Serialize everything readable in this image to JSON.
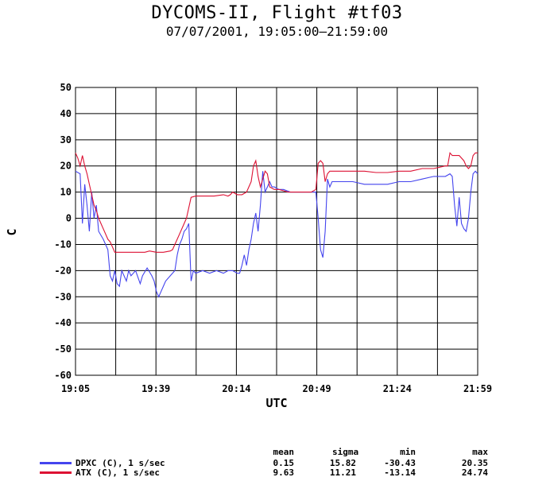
{
  "title": "DYCOMS-II, Flight #tf03",
  "subtitle": "07/07/2001, 19:05:00–21:59:00",
  "chart_data": {
    "type": "line",
    "xlabel": "UTC",
    "ylabel": "C",
    "x_ticks": [
      "19:05",
      "19:39",
      "20:14",
      "20:49",
      "21:24",
      "21:59"
    ],
    "x_range_minutes": [
      0,
      174
    ],
    "ylim": [
      -60,
      50
    ],
    "y_ticks": [
      -60,
      -50,
      -40,
      -30,
      -20,
      -10,
      0,
      10,
      20,
      30,
      40,
      50
    ],
    "grid": true,
    "series": [
      {
        "name": "DPXC (C), 1 s/sec",
        "color": "#4444ee",
        "points": [
          [
            0,
            18
          ],
          [
            2,
            17
          ],
          [
            3,
            -2
          ],
          [
            4,
            13
          ],
          [
            5,
            5
          ],
          [
            6,
            -5
          ],
          [
            7,
            10
          ],
          [
            8,
            0
          ],
          [
            9,
            5
          ],
          [
            10,
            -5
          ],
          [
            12,
            -8
          ],
          [
            14,
            -12
          ],
          [
            15,
            -22
          ],
          [
            16,
            -24
          ],
          [
            17,
            -20
          ],
          [
            18,
            -25
          ],
          [
            19,
            -26
          ],
          [
            20,
            -20
          ],
          [
            22,
            -24
          ],
          [
            23,
            -20
          ],
          [
            24,
            -22
          ],
          [
            26,
            -20
          ],
          [
            28,
            -25
          ],
          [
            29,
            -22
          ],
          [
            31,
            -19
          ],
          [
            33,
            -22
          ],
          [
            34,
            -24
          ],
          [
            35,
            -28
          ],
          [
            36,
            -30
          ],
          [
            37,
            -28
          ],
          [
            38,
            -26
          ],
          [
            39,
            -24
          ],
          [
            41,
            -22
          ],
          [
            43,
            -20
          ],
          [
            44,
            -14
          ],
          [
            45,
            -10
          ],
          [
            46,
            -8
          ],
          [
            47,
            -5
          ],
          [
            48,
            -4
          ],
          [
            49,
            -2
          ],
          [
            50,
            -24
          ],
          [
            51,
            -20
          ],
          [
            52,
            -21
          ],
          [
            55,
            -20
          ],
          [
            58,
            -21
          ],
          [
            61,
            -20
          ],
          [
            64,
            -21
          ],
          [
            66,
            -20
          ],
          [
            68,
            -20
          ],
          [
            70,
            -21
          ],
          [
            71,
            -21
          ],
          [
            72,
            -18
          ],
          [
            73,
            -14
          ],
          [
            74,
            -18
          ],
          [
            75,
            -12
          ],
          [
            76,
            -8
          ],
          [
            77,
            -2
          ],
          [
            78,
            2
          ],
          [
            79,
            -5
          ],
          [
            80,
            5
          ],
          [
            81,
            18
          ],
          [
            82,
            10
          ],
          [
            83,
            12
          ],
          [
            84,
            14
          ],
          [
            85,
            12
          ],
          [
            86,
            12
          ],
          [
            88,
            11
          ],
          [
            90,
            11
          ],
          [
            93,
            10
          ],
          [
            96,
            10
          ],
          [
            99,
            10
          ],
          [
            102,
            10
          ],
          [
            104,
            10
          ],
          [
            105,
            0
          ],
          [
            106,
            -12
          ],
          [
            107,
            -15
          ],
          [
            108,
            -5
          ],
          [
            109,
            15
          ],
          [
            110,
            12
          ],
          [
            111,
            14
          ],
          [
            115,
            14
          ],
          [
            120,
            14
          ],
          [
            125,
            13
          ],
          [
            130,
            13
          ],
          [
            135,
            13
          ],
          [
            140,
            14
          ],
          [
            145,
            14
          ],
          [
            150,
            15
          ],
          [
            155,
            16
          ],
          [
            160,
            16
          ],
          [
            162,
            17
          ],
          [
            163,
            16
          ],
          [
            164,
            5
          ],
          [
            165,
            -3
          ],
          [
            166,
            8
          ],
          [
            167,
            -2
          ],
          [
            168,
            -4
          ],
          [
            169,
            -5
          ],
          [
            170,
            0
          ],
          [
            171,
            10
          ],
          [
            172,
            17
          ],
          [
            173,
            18
          ],
          [
            174,
            17
          ]
        ]
      },
      {
        "name": "ATX (C), 1 s/sec",
        "color": "#dd1133",
        "points": [
          [
            0,
            25
          ],
          [
            1,
            23
          ],
          [
            2,
            20
          ],
          [
            3,
            24
          ],
          [
            4,
            20
          ],
          [
            5,
            17
          ],
          [
            6,
            13
          ],
          [
            7,
            9
          ],
          [
            8,
            5
          ],
          [
            9,
            3
          ],
          [
            10,
            0
          ],
          [
            12,
            -4
          ],
          [
            14,
            -8
          ],
          [
            15,
            -9
          ],
          [
            16,
            -11
          ],
          [
            17,
            -13
          ],
          [
            18,
            -13
          ],
          [
            22,
            -13
          ],
          [
            26,
            -13
          ],
          [
            30,
            -13
          ],
          [
            32,
            -12.5
          ],
          [
            35,
            -13
          ],
          [
            38,
            -13
          ],
          [
            41,
            -12.5
          ],
          [
            42,
            -12
          ],
          [
            43,
            -10
          ],
          [
            45,
            -6
          ],
          [
            47,
            -2
          ],
          [
            48,
            0
          ],
          [
            49,
            4
          ],
          [
            50,
            8
          ],
          [
            52,
            8.5
          ],
          [
            55,
            8.5
          ],
          [
            60,
            8.5
          ],
          [
            64,
            9
          ],
          [
            66,
            8.5
          ],
          [
            67,
            9
          ],
          [
            68,
            10
          ],
          [
            70,
            9
          ],
          [
            72,
            9
          ],
          [
            74,
            10
          ],
          [
            76,
            14
          ],
          [
            77,
            20
          ],
          [
            78,
            22
          ],
          [
            79,
            16
          ],
          [
            80,
            12
          ],
          [
            81,
            15
          ],
          [
            82,
            18
          ],
          [
            83,
            17
          ],
          [
            84,
            12
          ],
          [
            86,
            11
          ],
          [
            88,
            11
          ],
          [
            92,
            10
          ],
          [
            96,
            10
          ],
          [
            100,
            10
          ],
          [
            102,
            10
          ],
          [
            104,
            11
          ],
          [
            105,
            21
          ],
          [
            106,
            22
          ],
          [
            107,
            21
          ],
          [
            108,
            14
          ],
          [
            109,
            17
          ],
          [
            110,
            18
          ],
          [
            115,
            18
          ],
          [
            120,
            18
          ],
          [
            125,
            18
          ],
          [
            130,
            17.5
          ],
          [
            135,
            17.5
          ],
          [
            140,
            18
          ],
          [
            145,
            18
          ],
          [
            150,
            19
          ],
          [
            155,
            19
          ],
          [
            160,
            20
          ],
          [
            161,
            20
          ],
          [
            162,
            25
          ],
          [
            163,
            24
          ],
          [
            166,
            24
          ],
          [
            168,
            22
          ],
          [
            169,
            20
          ],
          [
            170,
            19
          ],
          [
            171,
            20
          ],
          [
            172,
            24
          ],
          [
            173,
            25
          ],
          [
            174,
            25
          ]
        ]
      }
    ],
    "stats_headers": [
      "mean",
      "sigma",
      "min",
      "max"
    ],
    "stats": [
      {
        "name": "DPXC (C), 1 s/sec",
        "mean": "0.15",
        "sigma": "15.82",
        "min": "-30.43",
        "max": "20.35"
      },
      {
        "name": "ATX (C), 1 s/sec",
        "mean": "9.63",
        "sigma": "11.21",
        "min": "-13.14",
        "max": "24.74"
      }
    ]
  }
}
